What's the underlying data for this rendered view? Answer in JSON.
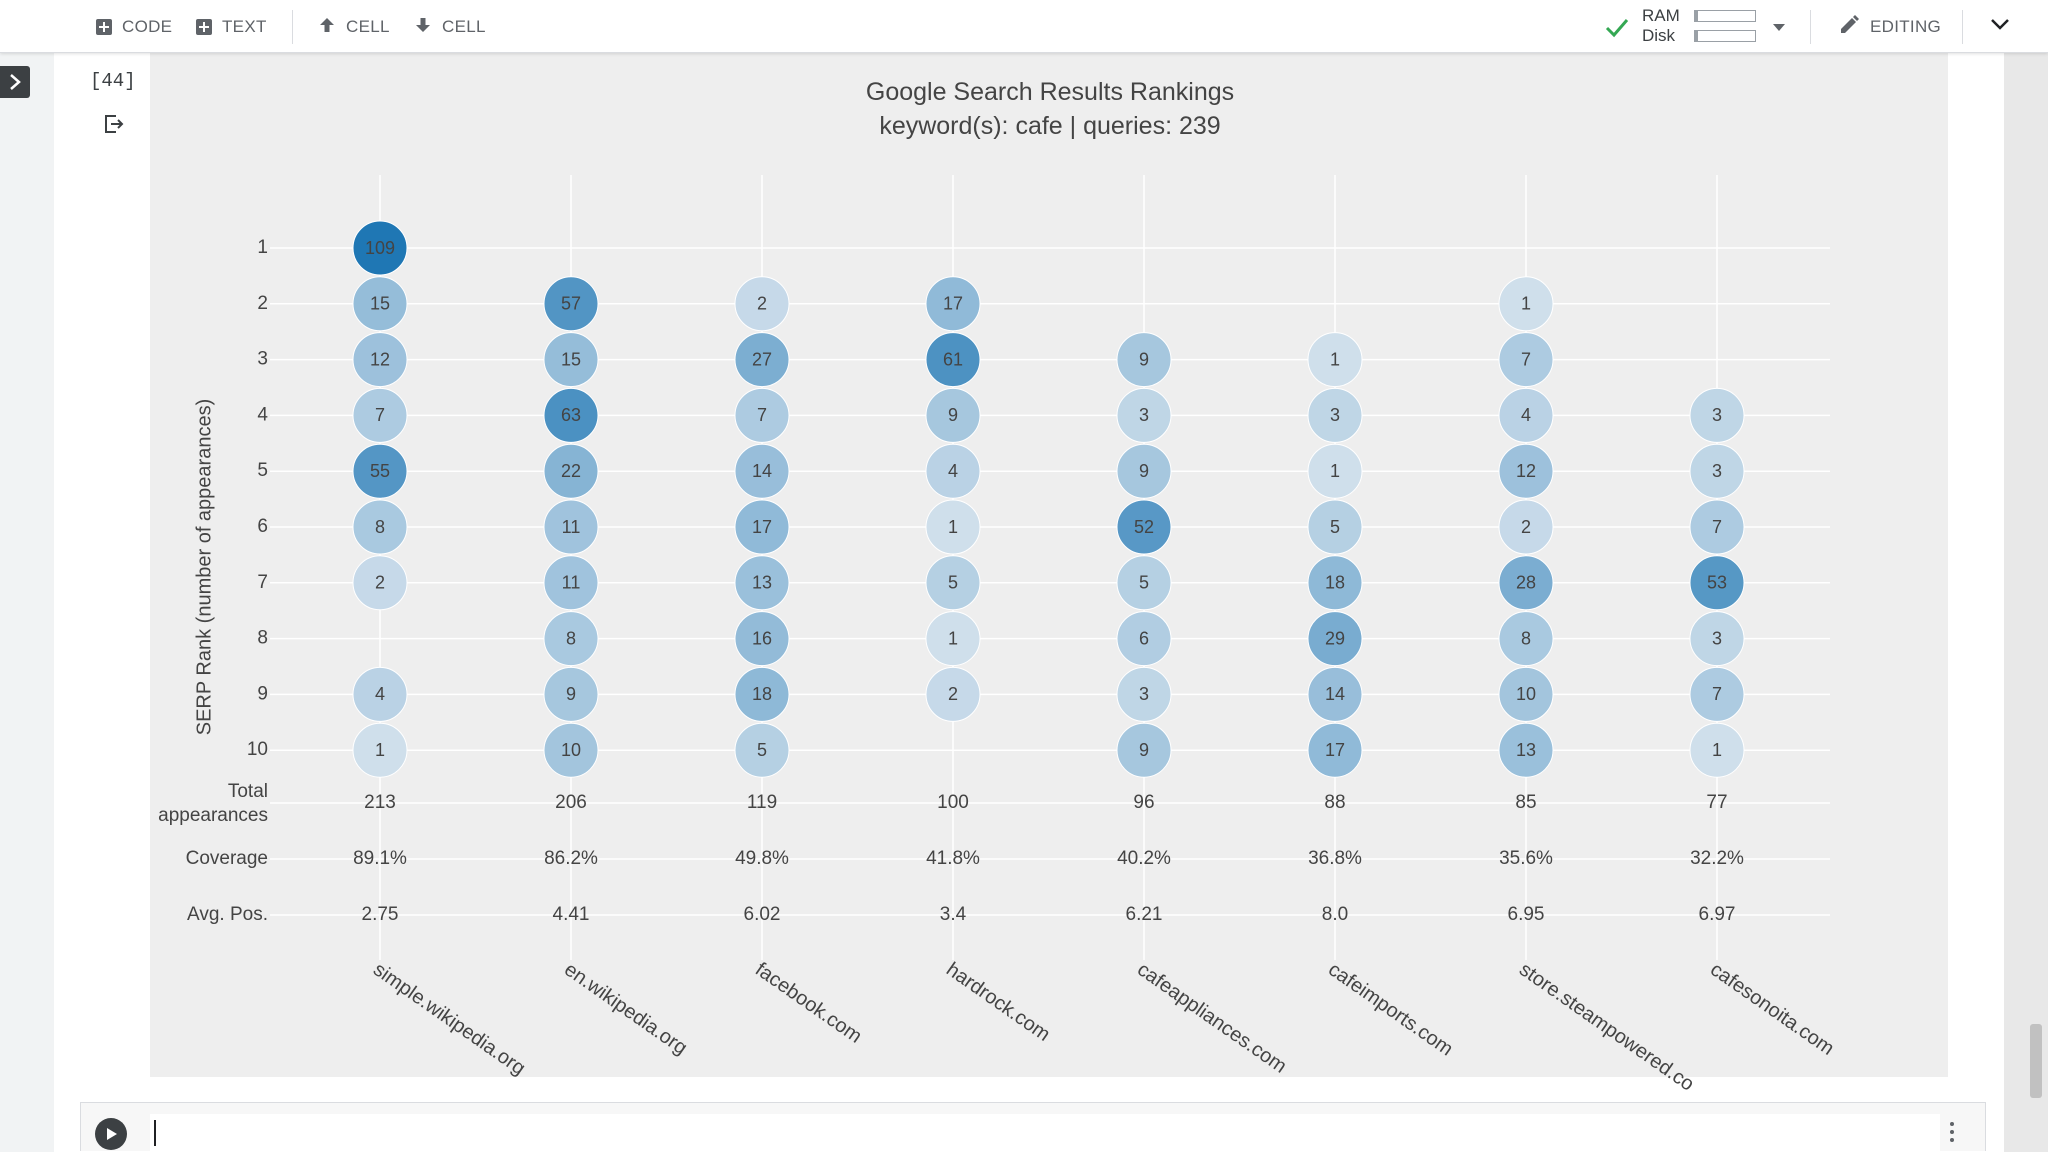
{
  "toolbar": {
    "code_label": "CODE",
    "text_label": "TEXT",
    "cell_up_label": "CELL",
    "cell_down_label": "CELL",
    "ram_label": "RAM",
    "disk_label": "Disk",
    "ram_usage": 0.05,
    "disk_usage": 0.05,
    "editing_label": "EDITING"
  },
  "cell": {
    "execution_count": "[44]"
  },
  "chart_data": {
    "type": "scatter",
    "title": "Google Search Results Rankings",
    "subtitle": "keyword(s): cafe | queries: 239",
    "ylabel": "SERP Rank (number of appearances)",
    "y_ticks": [
      "1",
      "2",
      "3",
      "4",
      "5",
      "6",
      "7",
      "8",
      "9",
      "10"
    ],
    "ylim": [
      1,
      10
    ],
    "categories": [
      "simple.wikipedia.org",
      "en.wikipedia.org",
      "facebook.com",
      "hardrock.com",
      "cafeappliances.com",
      "cafeimports.com",
      "store.steampowered.com",
      "cafesonoita.com"
    ],
    "category_display": [
      "simple.wikipedia.org",
      "en.wikipedia.org",
      "facebook.com",
      "hardrock.com",
      "cafeappliances.com",
      "cafeimports.com",
      "store.steampowered.co",
      "cafesonoita.com"
    ],
    "counts": [
      [
        109,
        15,
        12,
        7,
        55,
        8,
        2,
        null,
        4,
        1
      ],
      [
        null,
        57,
        15,
        63,
        22,
        11,
        11,
        8,
        9,
        10
      ],
      [
        null,
        2,
        27,
        7,
        14,
        17,
        13,
        16,
        18,
        5
      ],
      [
        null,
        17,
        61,
        9,
        4,
        1,
        5,
        1,
        2,
        null
      ],
      [
        null,
        null,
        9,
        3,
        9,
        52,
        5,
        6,
        3,
        9
      ],
      [
        null,
        null,
        1,
        3,
        1,
        5,
        18,
        29,
        14,
        17
      ],
      [
        null,
        1,
        7,
        4,
        12,
        2,
        28,
        8,
        10,
        13
      ],
      [
        null,
        null,
        null,
        3,
        3,
        7,
        53,
        3,
        7,
        1
      ]
    ],
    "summary_rows": {
      "total_label_line1": "Total",
      "total_label_line2": "appearances",
      "total": [
        "213",
        "206",
        "119",
        "100",
        "96",
        "88",
        "85",
        "77"
      ],
      "coverage_label": "Coverage",
      "coverage": [
        "89.1%",
        "86.2%",
        "49.8%",
        "41.8%",
        "40.2%",
        "36.8%",
        "35.6%",
        "32.2%"
      ],
      "avgpos_label": "Avg. Pos.",
      "avg_pos": [
        "2.75",
        "4.41",
        "6.02",
        "3.4",
        "6.21",
        "8.0",
        "6.95",
        "6.97"
      ]
    },
    "grid": true,
    "colors": {
      "low": "#e7edf3",
      "high": "#1f77b4",
      "text": "#444444"
    }
  }
}
